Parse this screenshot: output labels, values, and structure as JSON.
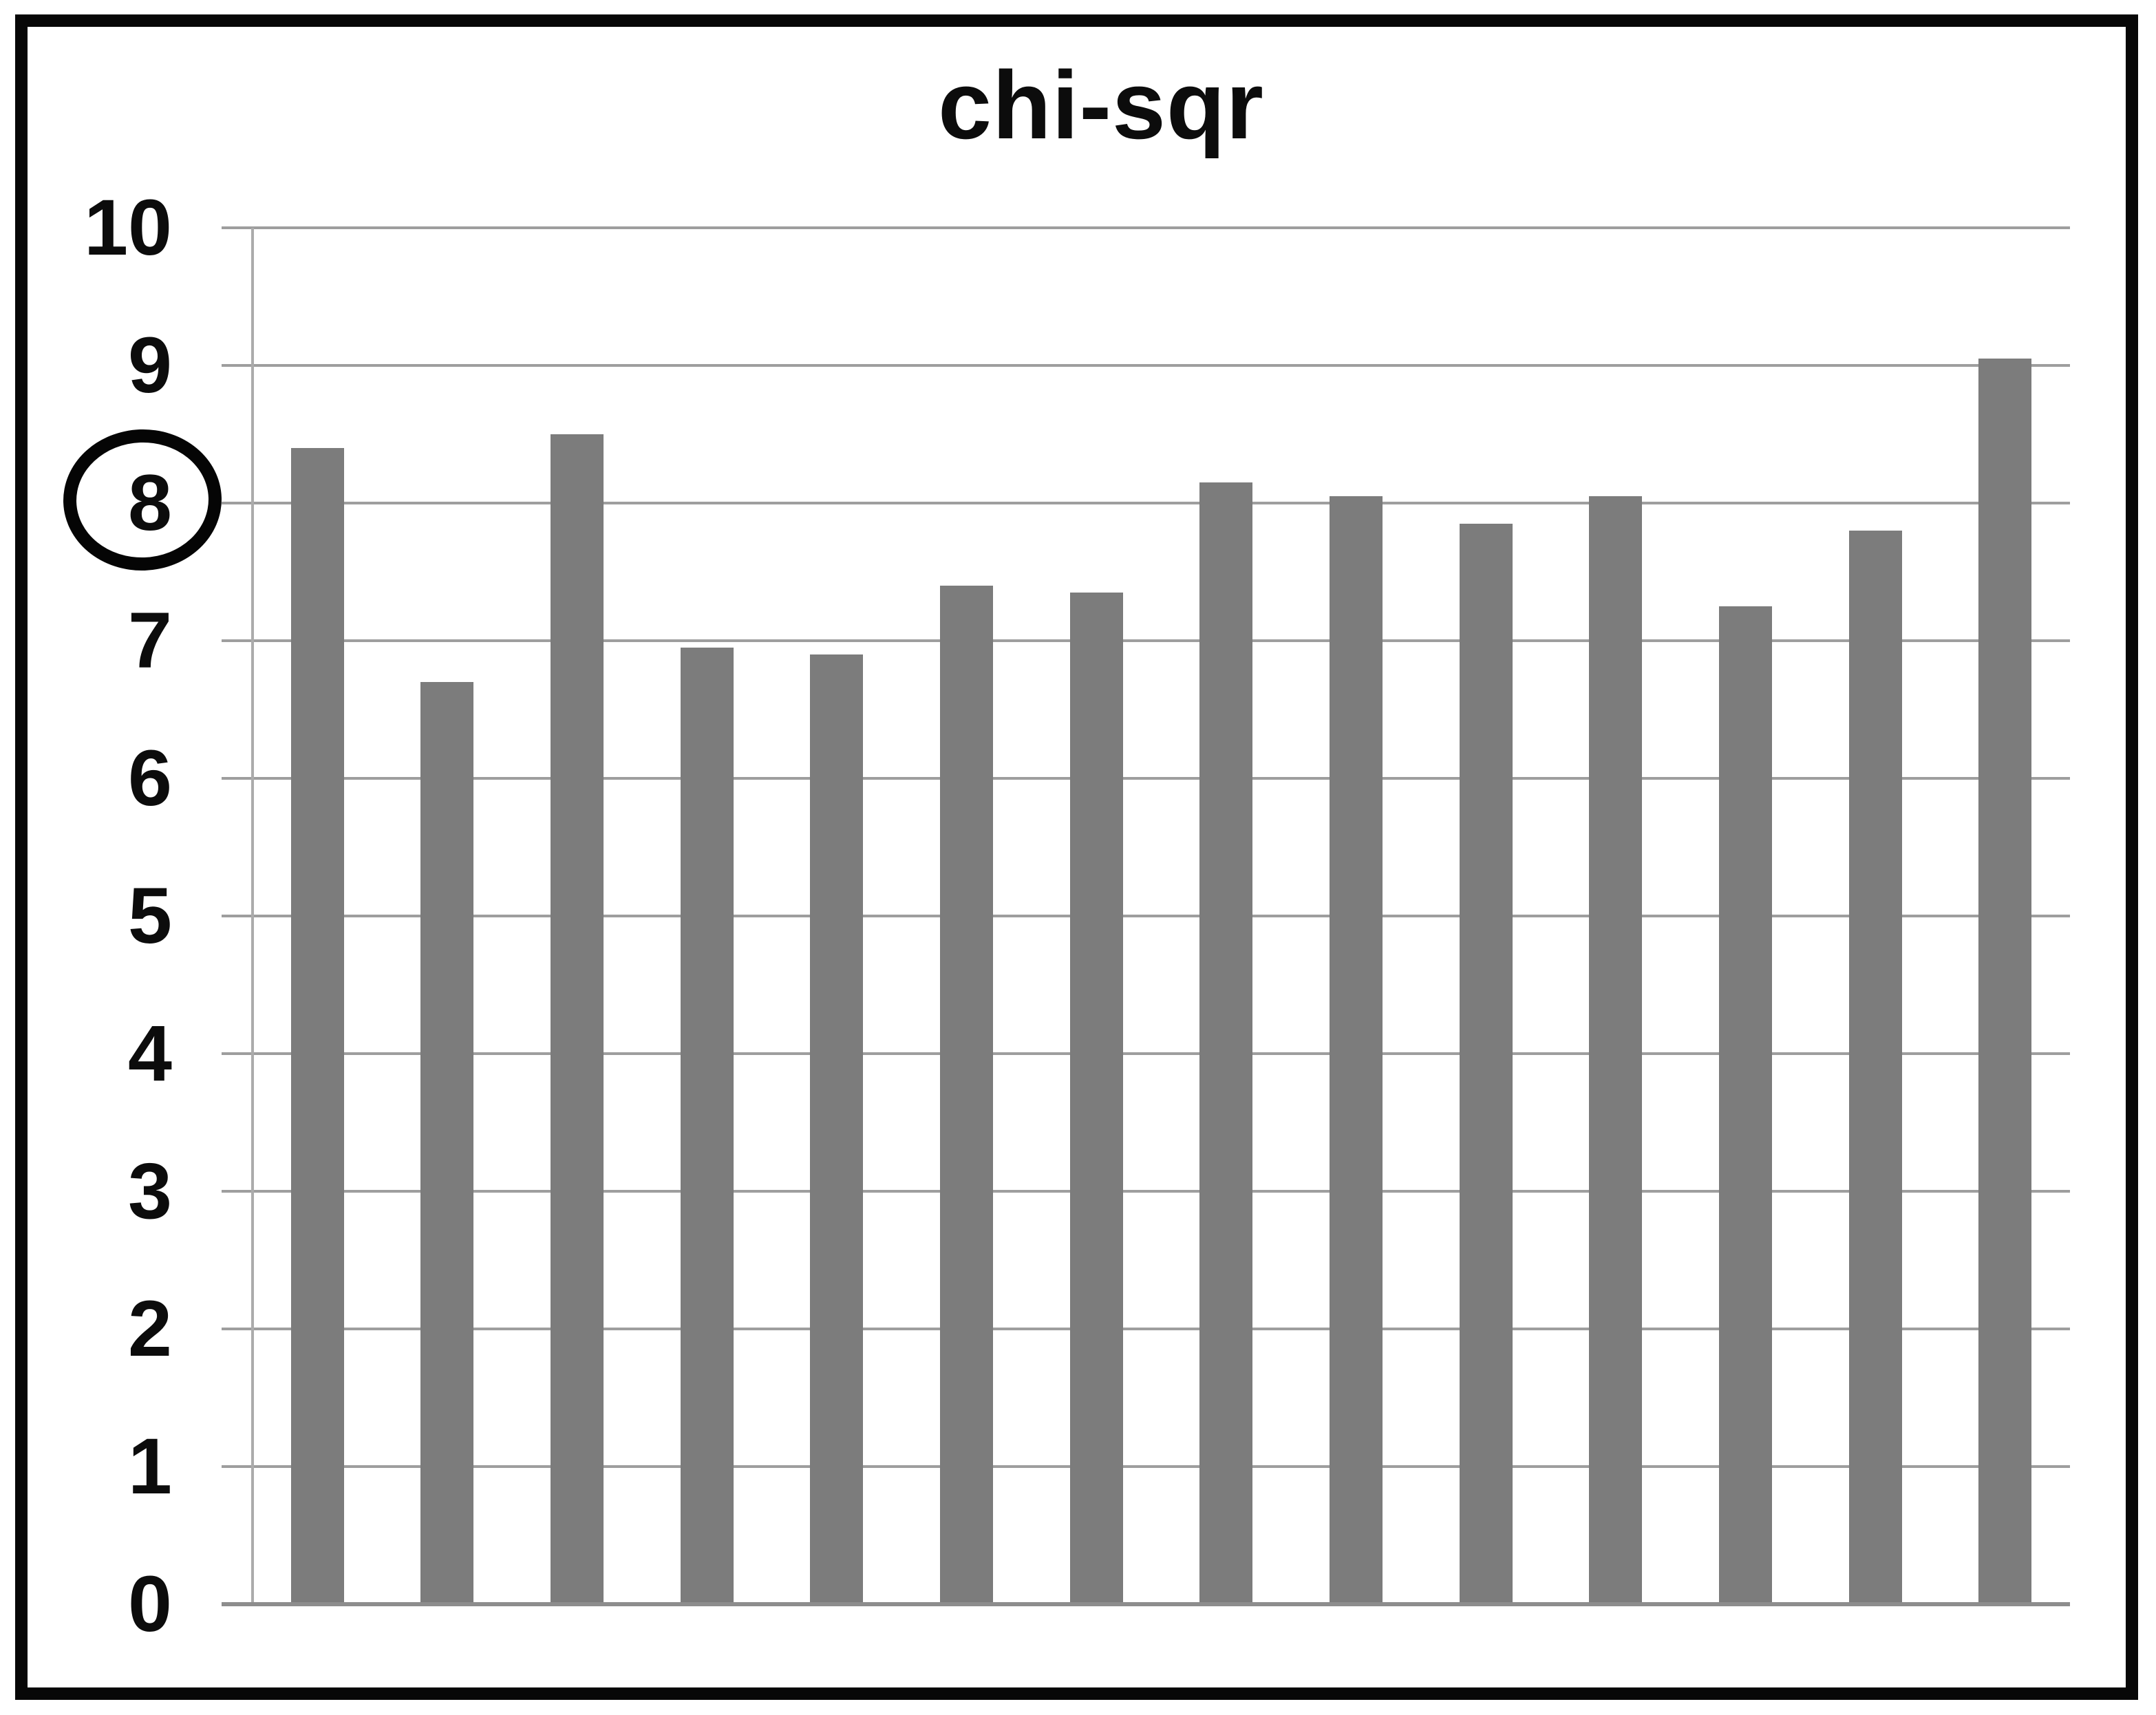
{
  "chart_data": {
    "type": "bar",
    "title": "chi-sqr",
    "values": [
      8.4,
      6.7,
      8.5,
      6.95,
      6.9,
      7.4,
      7.35,
      8.15,
      8.05,
      7.85,
      8.05,
      7.25,
      7.8,
      9.05
    ],
    "categories": [
      "",
      "",
      "",
      "",
      "",
      "",
      "",
      "",
      "",
      "",
      "",
      "",
      "",
      ""
    ],
    "x_axis_labels_visible": false,
    "ylim": [
      0,
      10
    ],
    "yticks": [
      10,
      9,
      8,
      7,
      6,
      5,
      4,
      3,
      2,
      1,
      0
    ],
    "ytick_step": 1,
    "grid": true,
    "legend": false,
    "bar_color": "#7c7c7c",
    "gridline_color": "#9e9e9e",
    "axis_line_color": "#ababab",
    "frame_color": "#070707",
    "background_color": "#ffffff",
    "annotation": {
      "shape": "hand-drawn-circle",
      "around_y_tick_label": "8",
      "color": "#050505"
    }
  }
}
